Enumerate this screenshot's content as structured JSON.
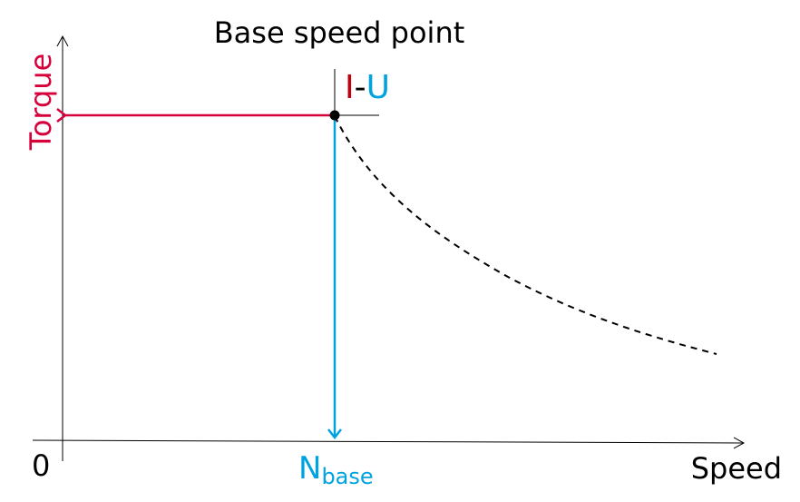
{
  "title": "Base speed point",
  "y_axis_label": "Torque",
  "x_axis_label": "Speed",
  "origin_label": "0",
  "base_speed_label": {
    "main": "N",
    "subscript": "base"
  },
  "point_label": {
    "current": "I",
    "separator": "-",
    "voltage": "U"
  },
  "colors": {
    "torque": "#d6003a",
    "current": "#c0000f",
    "speed": "#00a3e0",
    "axes": "#000000"
  }
}
